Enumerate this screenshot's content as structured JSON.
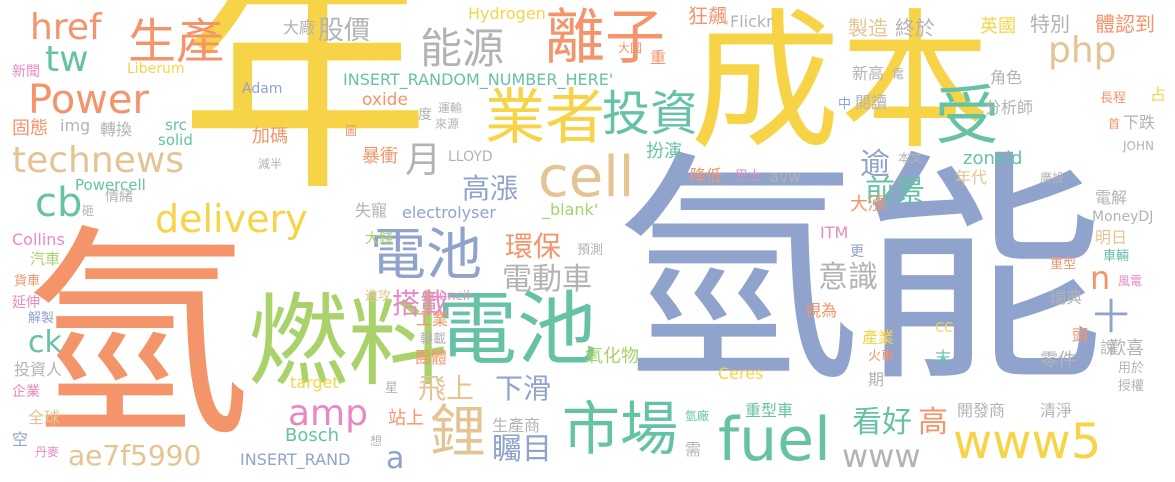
{
  "palette": {
    "yellow": "#f7d447",
    "blue": "#8fa3cc",
    "orange": "#f4946a",
    "green": "#a9d26a",
    "teal": "#66c2a5",
    "tan": "#e5c494",
    "gray": "#b3b3b3",
    "pink": "#e78ac3"
  },
  "words": [
    {
      "text": "年",
      "color": "yellow"
    },
    {
      "text": "成本",
      "color": "yellow"
    },
    {
      "text": "氫能",
      "color": "blue"
    },
    {
      "text": "氫",
      "color": "orange"
    },
    {
      "text": "燃料",
      "color": "green"
    },
    {
      "text": "電池",
      "color": "teal"
    },
    {
      "text": "離子",
      "color": "orange"
    },
    {
      "text": "業者",
      "color": "yellow"
    },
    {
      "text": "受",
      "color": "teal"
    },
    {
      "text": "cell",
      "color": "tan"
    },
    {
      "text": "fuel",
      "color": "teal"
    },
    {
      "text": "市場",
      "color": "teal"
    },
    {
      "text": "www5",
      "color": "yellow"
    },
    {
      "text": "電池",
      "color": "blue"
    },
    {
      "text": "technews",
      "color": "tan"
    },
    {
      "text": "Power",
      "color": "orange"
    },
    {
      "text": "delivery",
      "color": "yellow"
    },
    {
      "text": "cb",
      "color": "teal"
    },
    {
      "text": "投資",
      "color": "teal"
    },
    {
      "text": "能源",
      "color": "gray"
    },
    {
      "text": "生產",
      "color": "orange"
    },
    {
      "text": "href",
      "color": "orange"
    },
    {
      "text": "tw",
      "color": "teal"
    },
    {
      "text": "php",
      "color": "tan"
    },
    {
      "text": "amp",
      "color": "pink"
    },
    {
      "text": "ae7f5990",
      "color": "tan"
    },
    {
      "text": "鋰",
      "color": "tan"
    },
    {
      "text": "ck",
      "color": "teal"
    },
    {
      "text": "搭載",
      "color": "pink"
    },
    {
      "text": "環保",
      "color": "orange"
    },
    {
      "text": "電動車",
      "color": "gray"
    },
    {
      "text": "高漲",
      "color": "blue"
    },
    {
      "text": "前景",
      "color": "teal"
    },
    {
      "text": "月",
      "color": "gray"
    },
    {
      "text": "逾",
      "color": "blue"
    },
    {
      "text": "看好",
      "color": "teal"
    },
    {
      "text": "高",
      "color": "orange"
    },
    {
      "text": "www",
      "color": "gray"
    },
    {
      "text": "飛上",
      "color": "tan"
    },
    {
      "text": "下滑",
      "color": "blue"
    },
    {
      "text": "矚目",
      "color": "blue"
    },
    {
      "text": "意識",
      "color": "gray"
    },
    {
      "text": "十",
      "color": "blue"
    },
    {
      "text": "n",
      "color": "orange"
    },
    {
      "text": "a",
      "color": "blue"
    },
    {
      "text": "股價",
      "color": "gray"
    },
    {
      "text": "大廠",
      "color": "gray"
    },
    {
      "text": "Hydrogen",
      "color": "yellow"
    },
    {
      "text": "Flickr",
      "color": "gray"
    },
    {
      "text": "狂飆",
      "color": "orange"
    },
    {
      "text": "製造",
      "color": "tan"
    },
    {
      "text": "終於",
      "color": "gray"
    },
    {
      "text": "英國",
      "color": "yellow"
    },
    {
      "text": "特別",
      "color": "gray"
    },
    {
      "text": "體認到",
      "color": "orange"
    },
    {
      "text": "INSERT_RANDOM_NUMBER_HERE'",
      "color": "teal"
    },
    {
      "text": "oxide",
      "color": "orange"
    },
    {
      "text": "Liberum",
      "color": "yellow"
    },
    {
      "text": "Adam",
      "color": "blue"
    },
    {
      "text": "新聞",
      "color": "pink"
    },
    {
      "text": "固態",
      "color": "orange"
    },
    {
      "text": "img",
      "color": "gray"
    },
    {
      "text": "轉換",
      "color": "gray"
    },
    {
      "text": "src",
      "color": "teal"
    },
    {
      "text": "solid",
      "color": "teal"
    },
    {
      "text": "加碼",
      "color": "orange"
    },
    {
      "text": "暴衝",
      "color": "orange"
    },
    {
      "text": "減半",
      "color": "gray"
    },
    {
      "text": "LLOYD",
      "color": "gray"
    },
    {
      "text": "扮演",
      "color": "teal"
    },
    {
      "text": "zoneid",
      "color": "teal"
    },
    {
      "text": "avw",
      "color": "gray"
    },
    {
      "text": "Powercell",
      "color": "teal"
    },
    {
      "text": "情緒",
      "color": "gray"
    },
    {
      "text": "electrolyser",
      "color": "blue"
    },
    {
      "text": "_blank'",
      "color": "green"
    },
    {
      "text": "失寵",
      "color": "gray"
    },
    {
      "text": "降低",
      "color": "orange"
    },
    {
      "text": "巴士",
      "color": "pink"
    },
    {
      "text": "年代",
      "color": "tan"
    },
    {
      "text": "電解",
      "color": "gray"
    },
    {
      "text": "MoneyDJ",
      "color": "gray"
    },
    {
      "text": "Collins",
      "color": "pink"
    },
    {
      "text": "汽車",
      "color": "green"
    },
    {
      "text": "貨車",
      "color": "orange"
    },
    {
      "text": "延伸",
      "color": "pink"
    },
    {
      "text": "解製",
      "color": "blue"
    },
    {
      "text": "大錢",
      "color": "green"
    },
    {
      "text": "預測",
      "color": "gray"
    },
    {
      "text": "ITM",
      "color": "pink"
    },
    {
      "text": "大漲",
      "color": "orange"
    },
    {
      "text": "更",
      "color": "blue"
    },
    {
      "text": "明日",
      "color": "tan"
    },
    {
      "text": "重型",
      "color": "orange"
    },
    {
      "text": "車輛",
      "color": "teal"
    },
    {
      "text": "風電",
      "color": "pink"
    },
    {
      "text": "進攻",
      "color": "tan"
    },
    {
      "text": "Council",
      "color": "pink"
    },
    {
      "text": "工業",
      "color": "orange"
    },
    {
      "text": "轉載",
      "color": "gray"
    },
    {
      "text": "團體",
      "color": "orange"
    },
    {
      "text": "氧化物",
      "color": "green"
    },
    {
      "text": "視為",
      "color": "orange"
    },
    {
      "text": "產業",
      "color": "yellow"
    },
    {
      "text": "火車",
      "color": "orange"
    },
    {
      "text": "瑞典",
      "color": "gray"
    },
    {
      "text": "歡喜",
      "color": "gray"
    },
    {
      "text": "頭",
      "color": "orange"
    },
    {
      "text": "投資人",
      "color": "gray"
    },
    {
      "text": "企業",
      "color": "pink"
    },
    {
      "text": "全球",
      "color": "tan"
    },
    {
      "text": "空",
      "color": "blue"
    },
    {
      "text": "丹麥",
      "color": "pink"
    },
    {
      "text": "target",
      "color": "yellow"
    },
    {
      "text": "星",
      "color": "gray"
    },
    {
      "text": "站上",
      "color": "orange"
    },
    {
      "text": "Bosch",
      "color": "teal"
    },
    {
      "text": "INSERT_RAND",
      "color": "blue"
    },
    {
      "text": "想",
      "color": "gray"
    },
    {
      "text": "生產商",
      "color": "gray"
    },
    {
      "text": "氫廠",
      "color": "teal"
    },
    {
      "text": "重型車",
      "color": "teal"
    },
    {
      "text": "需",
      "color": "gray"
    },
    {
      "text": "開發商",
      "color": "gray"
    },
    {
      "text": "清淨",
      "color": "gray"
    },
    {
      "text": "零件",
      "color": "gray"
    },
    {
      "text": "Ceres",
      "color": "yellow"
    },
    {
      "text": "期",
      "color": "gray"
    },
    {
      "text": "末",
      "color": "teal"
    },
    {
      "text": "CC",
      "color": "yellow"
    },
    {
      "text": "說",
      "color": "gray"
    },
    {
      "text": "用於",
      "color": "gray"
    },
    {
      "text": "授權",
      "color": "gray"
    },
    {
      "text": "大國",
      "color": "orange"
    },
    {
      "text": "重",
      "color": "orange"
    },
    {
      "text": "新高",
      "color": "gray"
    },
    {
      "text": "電",
      "color": "gray"
    },
    {
      "text": "角色",
      "color": "gray"
    },
    {
      "text": "分析師",
      "color": "gray"
    },
    {
      "text": "中",
      "color": "blue"
    },
    {
      "text": "閱讀",
      "color": "gray"
    },
    {
      "text": "長程",
      "color": "orange"
    },
    {
      "text": "占",
      "color": "yellow"
    },
    {
      "text": "首",
      "color": "orange"
    },
    {
      "text": "下跌",
      "color": "gray"
    },
    {
      "text": "JOHN",
      "color": "gray"
    },
    {
      "text": "廣設",
      "color": "gray"
    },
    {
      "text": "本文",
      "color": "gray"
    },
    {
      "text": "運輸",
      "color": "gray"
    },
    {
      "text": "來源",
      "color": "gray"
    },
    {
      "text": "度",
      "color": "gray"
    },
    {
      "text": "圖",
      "color": "orange"
    },
    {
      "text": "砸",
      "color": "gray"
    }
  ]
}
